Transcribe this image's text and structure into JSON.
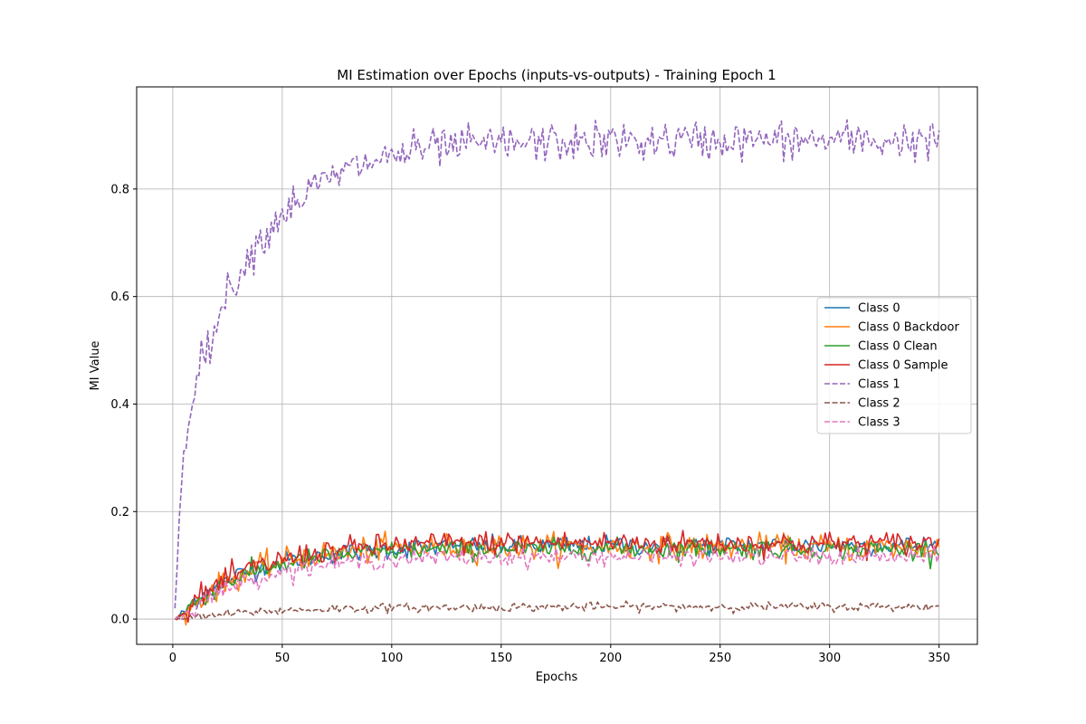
{
  "chart_data": {
    "type": "line",
    "title": "MI Estimation over Epochs (inputs-vs-outputs) - Training Epoch 1",
    "xlabel": "Epochs",
    "ylabel": "MI Value",
    "xlim": [
      -16.5,
      367.5
    ],
    "ylim": [
      -0.047,
      0.99
    ],
    "xticks": [
      0,
      50,
      100,
      150,
      200,
      250,
      300,
      350
    ],
    "yticks": [
      0.0,
      0.2,
      0.4,
      0.6,
      0.8
    ],
    "grid": true,
    "legend_position": "center-right",
    "x_range": [
      1,
      350
    ],
    "series": [
      {
        "name": "Class 0",
        "color": "#1f77b4",
        "style": "solid",
        "points": [
          [
            1,
            0.0
          ],
          [
            5,
            0.012
          ],
          [
            10,
            0.036
          ],
          [
            20,
            0.062
          ],
          [
            30,
            0.082
          ],
          [
            40,
            0.096
          ],
          [
            50,
            0.106
          ],
          [
            60,
            0.114
          ],
          [
            70,
            0.12
          ],
          [
            80,
            0.124
          ],
          [
            100,
            0.13
          ],
          [
            120,
            0.134
          ],
          [
            150,
            0.136
          ],
          [
            200,
            0.137
          ],
          [
            250,
            0.137
          ],
          [
            300,
            0.137
          ],
          [
            350,
            0.137
          ]
        ],
        "noise": 0.009
      },
      {
        "name": "Class 0 Backdoor",
        "color": "#ff7f0e",
        "style": "solid",
        "points": [
          [
            1,
            0.0
          ],
          [
            5,
            0.005
          ],
          [
            10,
            0.03
          ],
          [
            20,
            0.058
          ],
          [
            30,
            0.08
          ],
          [
            40,
            0.096
          ],
          [
            50,
            0.107
          ],
          [
            60,
            0.115
          ],
          [
            70,
            0.121
          ],
          [
            80,
            0.125
          ],
          [
            100,
            0.131
          ],
          [
            120,
            0.134
          ],
          [
            150,
            0.135
          ],
          [
            200,
            0.135
          ],
          [
            250,
            0.134
          ],
          [
            300,
            0.133
          ],
          [
            350,
            0.133
          ]
        ],
        "noise": 0.012
      },
      {
        "name": "Class 0 Clean",
        "color": "#2ca02c",
        "style": "solid",
        "points": [
          [
            1,
            0.0
          ],
          [
            5,
            0.01
          ],
          [
            10,
            0.032
          ],
          [
            20,
            0.058
          ],
          [
            30,
            0.078
          ],
          [
            40,
            0.092
          ],
          [
            50,
            0.102
          ],
          [
            60,
            0.11
          ],
          [
            70,
            0.116
          ],
          [
            80,
            0.12
          ],
          [
            100,
            0.126
          ],
          [
            120,
            0.129
          ],
          [
            150,
            0.13
          ],
          [
            200,
            0.131
          ],
          [
            250,
            0.131
          ],
          [
            300,
            0.13
          ],
          [
            350,
            0.13
          ]
        ],
        "noise": 0.009
      },
      {
        "name": "Class 0 Sample",
        "color": "#d62728",
        "style": "solid",
        "points": [
          [
            1,
            0.0
          ],
          [
            5,
            0.01
          ],
          [
            10,
            0.035
          ],
          [
            20,
            0.062
          ],
          [
            30,
            0.084
          ],
          [
            40,
            0.099
          ],
          [
            50,
            0.11
          ],
          [
            60,
            0.119
          ],
          [
            70,
            0.126
          ],
          [
            80,
            0.131
          ],
          [
            100,
            0.137
          ],
          [
            120,
            0.141
          ],
          [
            150,
            0.142
          ],
          [
            200,
            0.142
          ],
          [
            250,
            0.141
          ],
          [
            300,
            0.141
          ],
          [
            350,
            0.141
          ]
        ],
        "noise": 0.011
      },
      {
        "name": "Class 1",
        "color": "#9467bd",
        "style": "dashed",
        "points": [
          [
            1,
            0.02
          ],
          [
            2,
            0.1
          ],
          [
            3,
            0.19
          ],
          [
            4,
            0.25
          ],
          [
            5,
            0.3
          ],
          [
            7,
            0.37
          ],
          [
            9,
            0.43
          ],
          [
            12,
            0.465
          ],
          [
            15,
            0.5
          ],
          [
            20,
            0.55
          ],
          [
            25,
            0.605
          ],
          [
            30,
            0.645
          ],
          [
            35,
            0.675
          ],
          [
            40,
            0.705
          ],
          [
            45,
            0.73
          ],
          [
            50,
            0.755
          ],
          [
            60,
            0.79
          ],
          [
            70,
            0.815
          ],
          [
            80,
            0.835
          ],
          [
            90,
            0.85
          ],
          [
            100,
            0.862
          ],
          [
            110,
            0.87
          ],
          [
            120,
            0.876
          ],
          [
            140,
            0.882
          ],
          [
            160,
            0.885
          ],
          [
            200,
            0.888
          ],
          [
            250,
            0.89
          ],
          [
            300,
            0.89
          ],
          [
            350,
            0.89
          ]
        ],
        "noise": 0.018
      },
      {
        "name": "Class 2",
        "color": "#8c564b",
        "style": "dashed",
        "points": [
          [
            1,
            0.0
          ],
          [
            10,
            0.003
          ],
          [
            20,
            0.007
          ],
          [
            30,
            0.011
          ],
          [
            40,
            0.014
          ],
          [
            50,
            0.016
          ],
          [
            70,
            0.019
          ],
          [
            100,
            0.021
          ],
          [
            150,
            0.022
          ],
          [
            200,
            0.023
          ],
          [
            250,
            0.023
          ],
          [
            300,
            0.023
          ],
          [
            350,
            0.023
          ]
        ],
        "noise": 0.004
      },
      {
        "name": "Class 3",
        "color": "#e377c2",
        "style": "dashed",
        "points": [
          [
            1,
            0.0
          ],
          [
            5,
            0.008
          ],
          [
            10,
            0.025
          ],
          [
            20,
            0.048
          ],
          [
            30,
            0.066
          ],
          [
            40,
            0.079
          ],
          [
            50,
            0.089
          ],
          [
            60,
            0.096
          ],
          [
            70,
            0.102
          ],
          [
            80,
            0.106
          ],
          [
            100,
            0.111
          ],
          [
            120,
            0.114
          ],
          [
            150,
            0.115
          ],
          [
            200,
            0.116
          ],
          [
            250,
            0.116
          ],
          [
            300,
            0.115
          ],
          [
            350,
            0.115
          ]
        ],
        "noise": 0.008
      }
    ]
  }
}
